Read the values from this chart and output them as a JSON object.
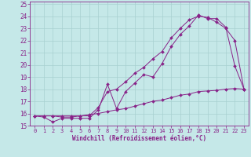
{
  "xlabel": "Windchill (Refroidissement éolien,°C)",
  "bg_color": "#c5e8e8",
  "line_color": "#882288",
  "grid_color": "#a8d0d0",
  "xlim": [
    -0.5,
    23.5
  ],
  "ylim": [
    15,
    25.2
  ],
  "yticks": [
    15,
    16,
    17,
    18,
    19,
    20,
    21,
    22,
    23,
    24,
    25
  ],
  "xticks": [
    0,
    1,
    2,
    3,
    4,
    5,
    6,
    7,
    8,
    9,
    10,
    11,
    12,
    13,
    14,
    15,
    16,
    17,
    18,
    19,
    20,
    21,
    22,
    23
  ],
  "line1_x": [
    0,
    1,
    2,
    3,
    4,
    5,
    6,
    7,
    8,
    9,
    10,
    11,
    12,
    13,
    14,
    15,
    16,
    17,
    18,
    19,
    20,
    21,
    22,
    23
  ],
  "line1_y": [
    15.8,
    15.7,
    15.3,
    15.6,
    15.6,
    15.6,
    15.6,
    16.3,
    18.4,
    16.4,
    17.8,
    18.5,
    19.2,
    19.0,
    20.1,
    21.5,
    22.5,
    23.2,
    24.1,
    23.8,
    23.8,
    23.1,
    19.9,
    18.0
  ],
  "line2_x": [
    0,
    1,
    2,
    3,
    4,
    5,
    6,
    7,
    8,
    9,
    10,
    11,
    12,
    13,
    14,
    15,
    16,
    17,
    18,
    19,
    20,
    21,
    22,
    23
  ],
  "line2_y": [
    15.8,
    15.8,
    15.8,
    15.7,
    15.7,
    15.8,
    15.8,
    16.5,
    17.8,
    18.0,
    18.6,
    19.3,
    19.8,
    20.5,
    21.1,
    22.2,
    23.0,
    23.7,
    24.0,
    23.9,
    23.5,
    23.0,
    22.0,
    18.0
  ],
  "line3_x": [
    0,
    1,
    2,
    3,
    4,
    5,
    6,
    7,
    8,
    9,
    10,
    11,
    12,
    13,
    14,
    15,
    16,
    17,
    18,
    19,
    20,
    21,
    22,
    23
  ],
  "line3_y": [
    15.8,
    15.8,
    15.8,
    15.8,
    15.8,
    15.8,
    15.9,
    16.0,
    16.15,
    16.3,
    16.4,
    16.6,
    16.8,
    17.0,
    17.1,
    17.3,
    17.5,
    17.6,
    17.8,
    17.85,
    17.9,
    18.0,
    18.05,
    18.0
  ]
}
